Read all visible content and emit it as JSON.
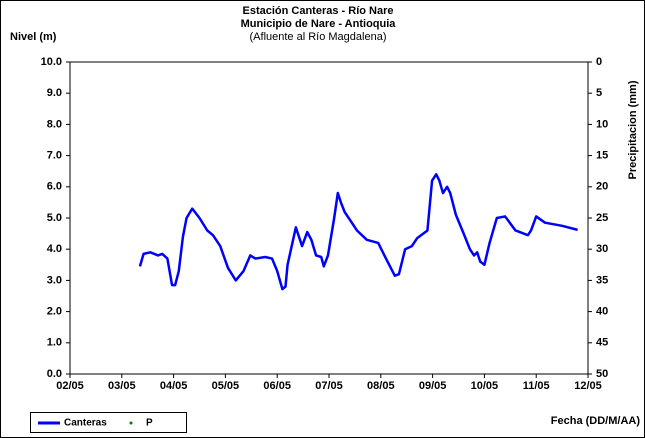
{
  "chart_data": {
    "type": "line",
    "title": "Estación Canteras - Río Nare",
    "subtitle": "Municipio de Nare - Antioquia",
    "annotation": "(Afluente al Río Magdalena)",
    "y_label": "Nivel (m)",
    "y2_label": "Precipitacion (mm)",
    "x_label": "Fecha (DD/M/AA)",
    "xlim": [
      0,
      10
    ],
    "xticks": [
      {
        "value": 0,
        "label": "02/05"
      },
      {
        "value": 1,
        "label": "03/05"
      },
      {
        "value": 2,
        "label": "04/05"
      },
      {
        "value": 3,
        "label": "05/05"
      },
      {
        "value": 4,
        "label": "06/05"
      },
      {
        "value": 5,
        "label": "07/05"
      },
      {
        "value": 6,
        "label": "08/05"
      },
      {
        "value": 7,
        "label": "09/05"
      },
      {
        "value": 8,
        "label": "10/05"
      },
      {
        "value": 9,
        "label": "11/05"
      },
      {
        "value": 10,
        "label": "12/05"
      }
    ],
    "ylim": [
      0,
      10
    ],
    "yticks": [
      {
        "value": 0,
        "label": "0.0"
      },
      {
        "value": 1,
        "label": "1.0"
      },
      {
        "value": 2,
        "label": "2.0"
      },
      {
        "value": 3,
        "label": "3.0"
      },
      {
        "value": 4,
        "label": "4.0"
      },
      {
        "value": 5,
        "label": "5.0"
      },
      {
        "value": 6,
        "label": "6.0"
      },
      {
        "value": 7,
        "label": "7.0"
      },
      {
        "value": 8,
        "label": "8.0"
      },
      {
        "value": 9,
        "label": "9.0"
      },
      {
        "value": 10,
        "label": "10.0"
      }
    ],
    "y2lim": [
      50,
      0
    ],
    "y2ticks": [
      0,
      5,
      10,
      15,
      20,
      25,
      30,
      35,
      40,
      45,
      50
    ],
    "grid": false,
    "legend": "bottom-left",
    "series": [
      {
        "name": "Canteras",
        "color": "#0000ff",
        "x": [
          1.35,
          1.42,
          1.55,
          1.7,
          1.78,
          1.88,
          1.97,
          2.03,
          2.1,
          2.18,
          2.25,
          2.36,
          2.5,
          2.65,
          2.76,
          2.9,
          3.05,
          3.2,
          3.35,
          3.48,
          3.58,
          3.77,
          3.9,
          4.0,
          4.1,
          4.16,
          4.2,
          4.36,
          4.48,
          4.58,
          4.66,
          4.75,
          4.85,
          4.9,
          4.98,
          5.1,
          5.17,
          5.23,
          5.3,
          5.54,
          5.73,
          5.95,
          6.1,
          6.27,
          6.35,
          6.47,
          6.6,
          6.7,
          6.9,
          6.99,
          7.07,
          7.13,
          7.2,
          7.28,
          7.34,
          7.45,
          7.6,
          7.72,
          7.8,
          7.86,
          7.92,
          8.0,
          8.1,
          8.24,
          8.4,
          8.6,
          8.84,
          8.9,
          9.0,
          9.17,
          9.5,
          9.8
        ],
        "values": [
          3.45,
          3.85,
          3.9,
          3.8,
          3.85,
          3.7,
          2.85,
          2.85,
          3.3,
          4.4,
          5.0,
          5.3,
          5.0,
          4.6,
          4.45,
          4.1,
          3.4,
          3.0,
          3.3,
          3.8,
          3.7,
          3.75,
          3.7,
          3.3,
          2.72,
          2.8,
          3.5,
          4.7,
          4.1,
          4.55,
          4.3,
          3.8,
          3.75,
          3.45,
          3.8,
          5.0,
          5.8,
          5.5,
          5.2,
          4.6,
          4.3,
          4.2,
          3.7,
          3.15,
          3.2,
          4.0,
          4.1,
          4.35,
          4.6,
          6.2,
          6.4,
          6.2,
          5.8,
          6.0,
          5.8,
          5.1,
          4.5,
          4.0,
          3.8,
          3.9,
          3.6,
          3.5,
          4.2,
          5.0,
          5.05,
          4.6,
          4.45,
          4.6,
          5.05,
          4.85,
          4.75,
          4.62
        ]
      },
      {
        "name": "P",
        "color": "#008000",
        "axis": "y2",
        "x": [],
        "values": []
      }
    ]
  }
}
